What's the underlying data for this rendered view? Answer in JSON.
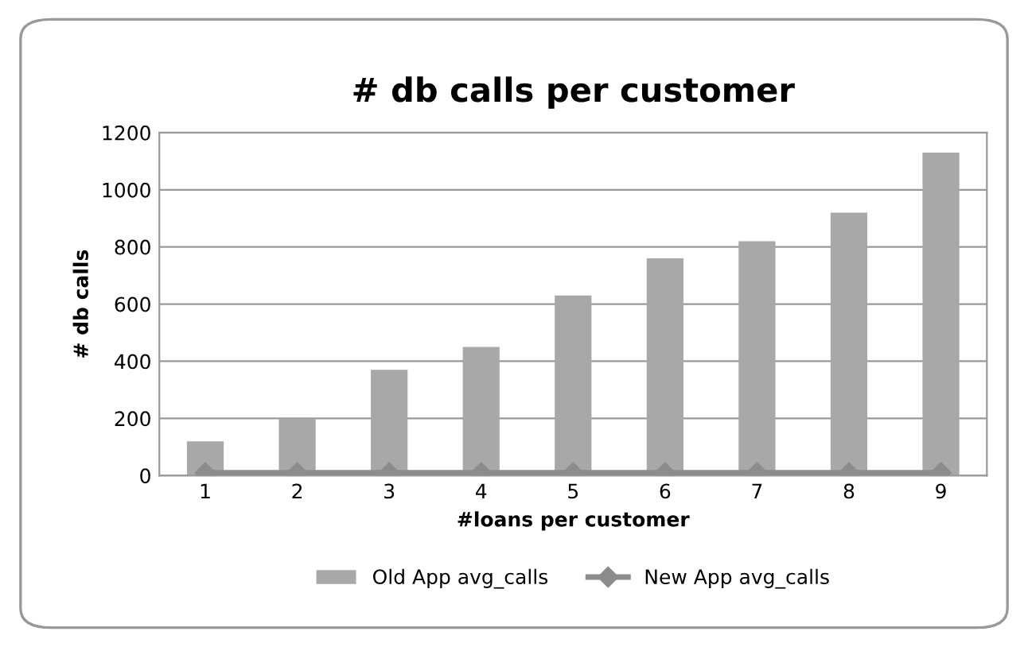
{
  "chart_data": {
    "type": "bar",
    "title": "# db calls per customer",
    "xlabel": "#loans per customer",
    "ylabel": "# db calls",
    "categories": [
      "1",
      "2",
      "3",
      "4",
      "5",
      "6",
      "7",
      "8",
      "9"
    ],
    "series": [
      {
        "name": "Old App avg_calls",
        "color": "#a8a8a8",
        "values": [
          120,
          200,
          370,
          450,
          630,
          760,
          820,
          920,
          1130
        ]
      },
      {
        "name": "New App avg_calls",
        "type": "line",
        "color": "#8c8c8c",
        "marker": "diamond",
        "values": [
          10,
          10,
          10,
          10,
          10,
          10,
          10,
          10,
          10
        ]
      }
    ],
    "ylim": [
      0,
      1200
    ],
    "yticks": [
      0,
      200,
      400,
      600,
      800,
      1000,
      1200
    ],
    "grid": "y",
    "legend": "bottom"
  }
}
